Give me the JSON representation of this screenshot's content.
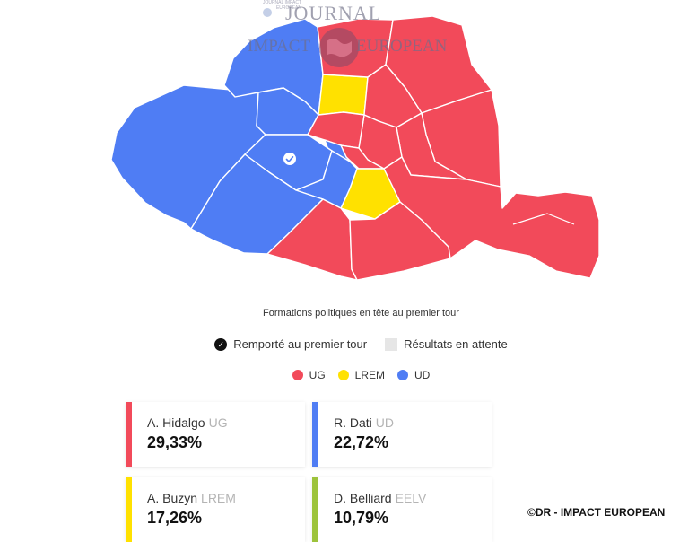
{
  "watermark": {
    "journal": "JOURNAL",
    "impact": "IMPACT",
    "european": "EUROPEAN",
    "small_text": "JOURNAL IMPACT EUROPEAN"
  },
  "map": {
    "subtitle": "Formations politiques en tête au premier tour",
    "colors": {
      "UG": "#f24a5a",
      "LREM": "#ffe100",
      "UD": "#4f7df4"
    },
    "arrondissements": [
      {
        "id": "1",
        "party": "UD"
      },
      {
        "id": "2",
        "party": "UG"
      },
      {
        "id": "3",
        "party": "UG"
      },
      {
        "id": "4",
        "party": "UG"
      },
      {
        "id": "5",
        "party": "LREM"
      },
      {
        "id": "6",
        "party": "UD"
      },
      {
        "id": "7",
        "party": "UD",
        "won_first_round": true
      },
      {
        "id": "8",
        "party": "UD"
      },
      {
        "id": "9",
        "party": "LREM"
      },
      {
        "id": "10",
        "party": "UG"
      },
      {
        "id": "11",
        "party": "UG"
      },
      {
        "id": "12",
        "party": "UG"
      },
      {
        "id": "13",
        "party": "UG"
      },
      {
        "id": "14",
        "party": "UG"
      },
      {
        "id": "15",
        "party": "UD"
      },
      {
        "id": "16",
        "party": "UD"
      },
      {
        "id": "17",
        "party": "UD"
      },
      {
        "id": "18",
        "party": "UG"
      },
      {
        "id": "19",
        "party": "UG"
      },
      {
        "id": "20",
        "party": "UG"
      }
    ]
  },
  "legend": {
    "won_first_round": "Remporté au premier tour",
    "pending": "Résultats en attente",
    "parties": [
      {
        "name": "UG",
        "color": "#f24a5a"
      },
      {
        "name": "LREM",
        "color": "#ffe100"
      },
      {
        "name": "UD",
        "color": "#4f7df4"
      }
    ]
  },
  "candidates": [
    {
      "name": "A. Hidalgo",
      "party": "UG",
      "percent": "29,33%",
      "color": "#f24a5a"
    },
    {
      "name": "R. Dati",
      "party": "UD",
      "percent": "22,72%",
      "color": "#4f7df4"
    },
    {
      "name": "A. Buzyn",
      "party": "LREM",
      "percent": "17,26%",
      "color": "#ffe100"
    },
    {
      "name": "D. Belliard",
      "party": "EELV",
      "percent": "10,79%",
      "color": "#9dc33b"
    }
  ],
  "credit": "©DR - IMPACT EUROPEAN"
}
